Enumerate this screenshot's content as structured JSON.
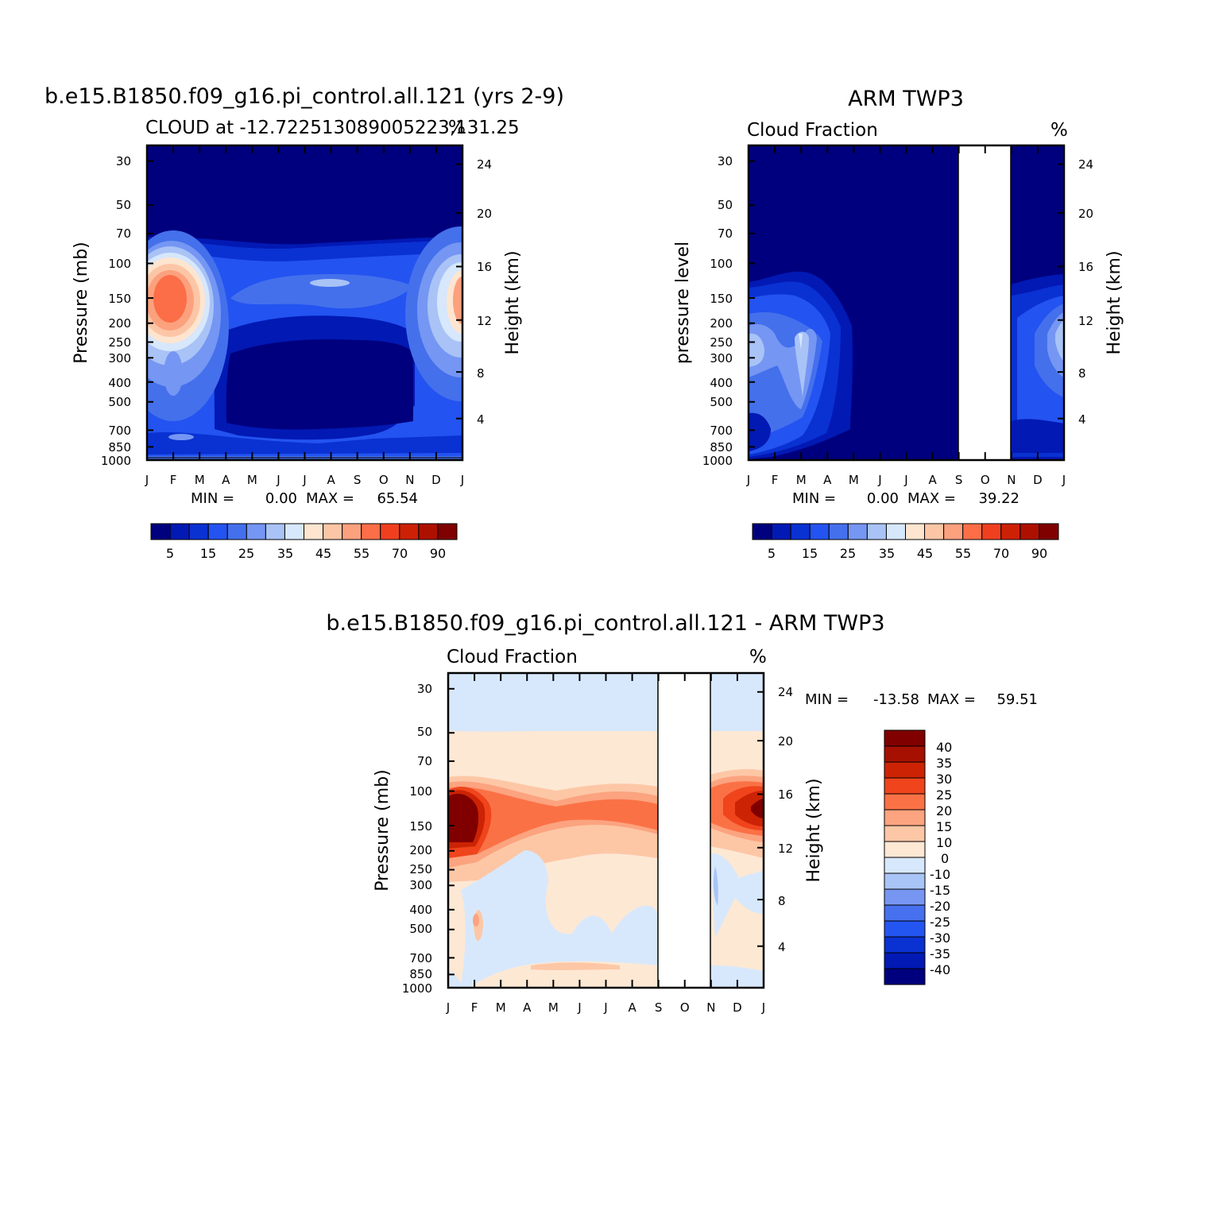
{
  "chart_data": [
    {
      "type": "heatmap",
      "title": "b.e15.B1850.f09_g16.pi_control.all.121 (yrs 2-9)",
      "subtitle": "CLOUD at -12.722513089005223,131.25",
      "units": "%",
      "ylabel": "Pressure (mb)",
      "ylabel_right": "Height (km)",
      "x_ticks": [
        "J",
        "F",
        "M",
        "A",
        "M",
        "J",
        "J",
        "A",
        "S",
        "O",
        "N",
        "D",
        "J"
      ],
      "y_ticks": [
        "30",
        "50",
        "70",
        "100",
        "150",
        "200",
        "250",
        "300",
        "400",
        "500",
        "700",
        "850",
        "1000"
      ],
      "y_ticks_right": [
        "24",
        "20",
        "16",
        "12",
        "8",
        "4"
      ],
      "stats": {
        "min_label": "MIN =",
        "min": "0.00",
        "max_label": "MAX =",
        "max": "65.54"
      },
      "levels": [
        "5",
        "15",
        "25",
        "35",
        "45",
        "55",
        "70",
        "90"
      ]
    },
    {
      "type": "heatmap",
      "title": "ARM TWP3",
      "subtitle": "Cloud Fraction",
      "units": "%",
      "ylabel": "pressure level",
      "ylabel_right": "Height (km)",
      "x_ticks": [
        "J",
        "F",
        "M",
        "A",
        "M",
        "J",
        "J",
        "A",
        "S",
        "O",
        "N",
        "D",
        "J"
      ],
      "y_ticks": [
        "30",
        "50",
        "70",
        "100",
        "150",
        "200",
        "250",
        "300",
        "400",
        "500",
        "700",
        "850",
        "1000"
      ],
      "y_ticks_right": [
        "24",
        "20",
        "16",
        "12",
        "8",
        "4"
      ],
      "stats": {
        "min_label": "MIN =",
        "min": "0.00",
        "max_label": "MAX =",
        "max": "39.22"
      },
      "missing_months": [
        "S",
        "O"
      ],
      "levels": [
        "5",
        "15",
        "25",
        "35",
        "45",
        "55",
        "70",
        "90"
      ]
    },
    {
      "type": "heatmap",
      "title": "b.e15.B1850.f09_g16.pi_control.all.121 - ARM TWP3",
      "subtitle": "Cloud Fraction",
      "units": "%",
      "ylabel": "Pressure (mb)",
      "ylabel_right": "Height (km)",
      "x_ticks": [
        "J",
        "F",
        "M",
        "A",
        "M",
        "J",
        "J",
        "A",
        "S",
        "O",
        "N",
        "D",
        "J"
      ],
      "y_ticks": [
        "30",
        "50",
        "70",
        "100",
        "150",
        "200",
        "250",
        "300",
        "400",
        "500",
        "700",
        "850",
        "1000"
      ],
      "y_ticks_right": [
        "24",
        "20",
        "16",
        "12",
        "8",
        "4"
      ],
      "stats": {
        "min_label": "MIN =",
        "min": "-13.58",
        "max_label": "MAX =",
        "max": "59.51"
      },
      "missing_months": [
        "S",
        "O"
      ],
      "levels": [
        "40",
        "35",
        "30",
        "25",
        "20",
        "15",
        "10",
        "0",
        "-10",
        "-15",
        "-20",
        "-25",
        "-30",
        "-35",
        "-40"
      ]
    }
  ],
  "colors": {
    "seq_colorbar": [
      "#00007e",
      "#0219b4",
      "#0a31d2",
      "#2353f0",
      "#4470ec",
      "#7596f3",
      "#a9c3f6",
      "#d7e7fc",
      "#fde5d0",
      "#fcc6a6",
      "#fca17e",
      "#fb6e47",
      "#ef3f1f",
      "#cd2106",
      "#ae1000",
      "#800000"
    ],
    "div_colorbar": [
      "#800000",
      "#a61000",
      "#cc2304",
      "#ef441c",
      "#fb7146",
      "#fca37f",
      "#fdc7a6",
      "#fde8d4",
      "#d7e8fc",
      "#a9c4f6",
      "#7796f2",
      "#4670ee",
      "#2355f1",
      "#0a31d1",
      "#0219b4",
      "#00007e"
    ]
  }
}
